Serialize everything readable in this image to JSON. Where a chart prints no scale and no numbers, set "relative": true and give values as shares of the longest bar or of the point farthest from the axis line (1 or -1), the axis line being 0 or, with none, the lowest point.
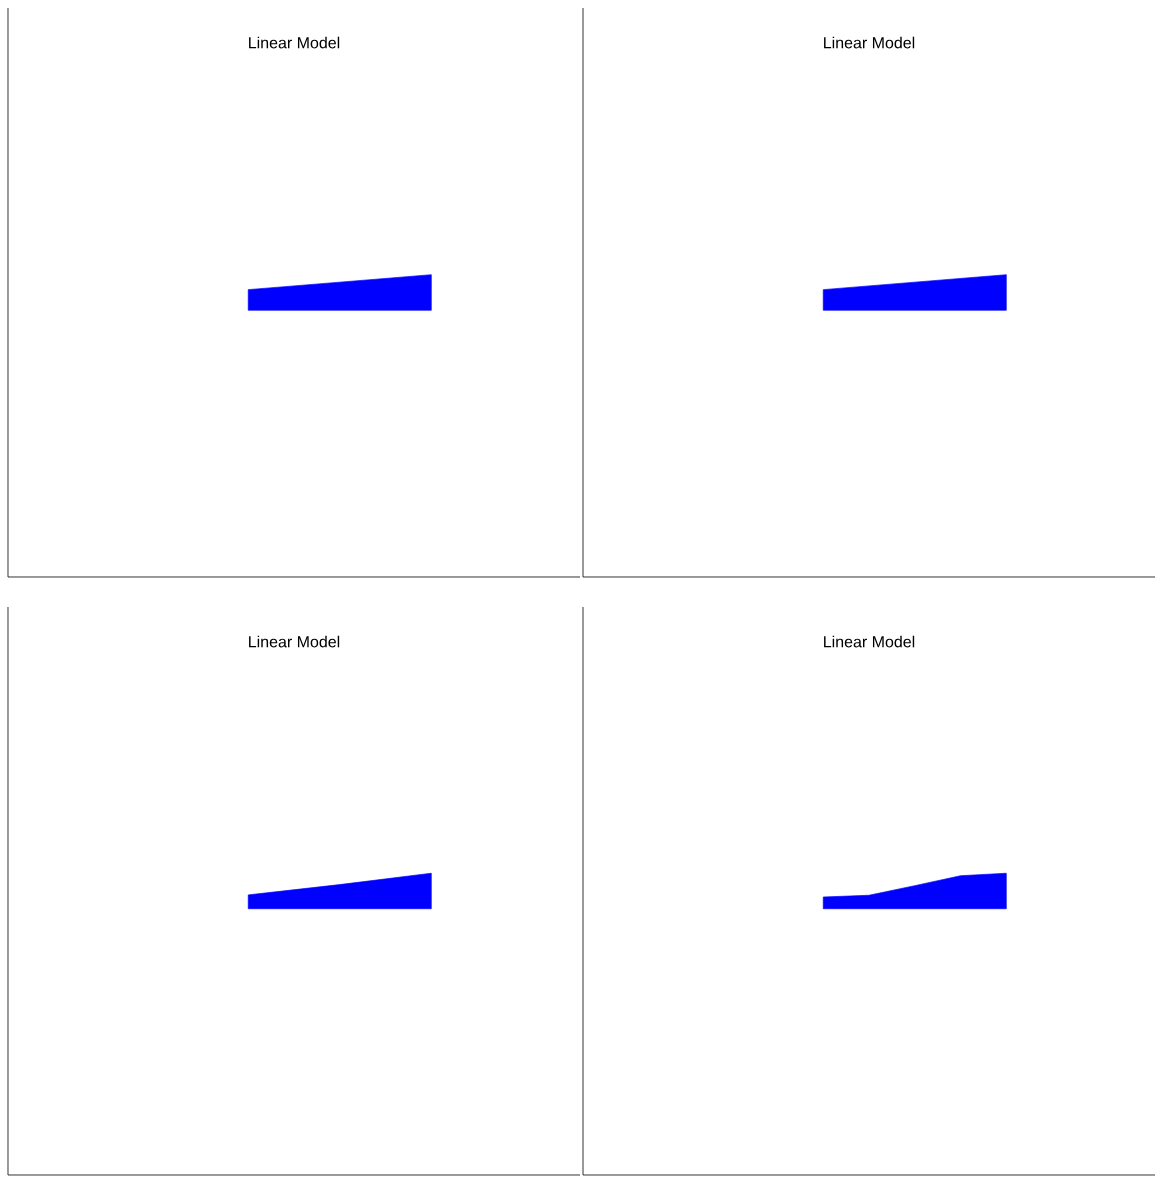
{
  "chart_data": [
    {
      "type": "area",
      "title": "Linear Model",
      "relative": true,
      "categories": [
        null,
        null
      ],
      "series": [
        {
          "color": "#0000ff",
          "values": [
            0.58,
            1
          ]
        }
      ]
    },
    {
      "type": "area",
      "title": "Linear Model",
      "relative": true,
      "categories": [
        null,
        null
      ],
      "series": [
        {
          "color": "#0000ff",
          "values": [
            0.58,
            1
          ]
        }
      ]
    },
    {
      "type": "area",
      "title": "Linear Model",
      "relative": true,
      "categories": [
        null,
        null,
        null
      ],
      "series": [
        {
          "color": "#0000ff",
          "values": [
            0.39,
            0.68,
            1
          ]
        }
      ]
    },
    {
      "type": "area",
      "title": "Linear Model",
      "relative": true,
      "categories": [
        null,
        null,
        null,
        null,
        null
      ],
      "series": [
        {
          "color": "#0000ff",
          "values": [
            0.33,
            0.38,
            0.65,
            0.93,
            1
          ]
        }
      ]
    }
  ]
}
